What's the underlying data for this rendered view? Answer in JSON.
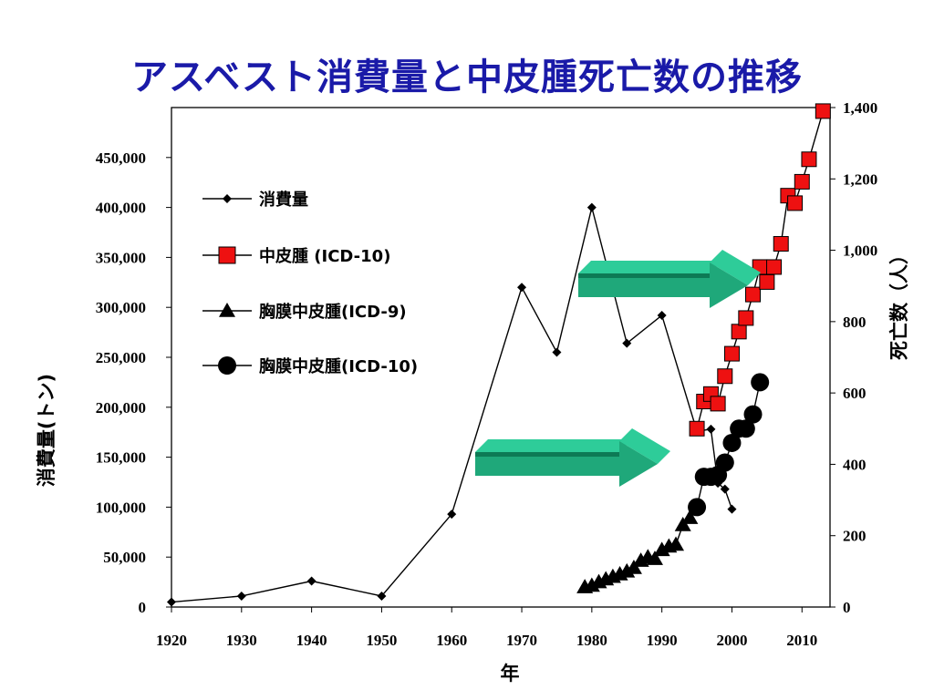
{
  "title": "アスベスト消費量と中皮腫死亡数の推移",
  "chart_data": {
    "type": "line",
    "xlabel": "年",
    "ylabel_left": "消費量(トン)",
    "ylabel_right": "死亡数（人）",
    "xlim": [
      1920,
      2014
    ],
    "ylim_left": [
      0,
      500000
    ],
    "ylim_right": [
      0,
      1400
    ],
    "x_ticks": [
      "1920",
      "1930",
      "1940",
      "1950",
      "1960",
      "1970",
      "1980",
      "1990",
      "2000",
      "2010"
    ],
    "y_left_ticks": [
      "0",
      "50,000",
      "100,000",
      "150,000",
      "200,000",
      "250,000",
      "300,000",
      "350,000",
      "400,000",
      "450,000"
    ],
    "y_right_ticks": [
      "0",
      "200",
      "400",
      "600",
      "800",
      "1,000",
      "1,200",
      "1,400"
    ],
    "legend": "upper-left",
    "colors": {
      "title": "#1a1aa8",
      "consumption": "#000000",
      "mesothelioma_marker": "#ee1111",
      "pleural": "#000000",
      "arrow_face": "#1fa87a",
      "arrow_top": "#2ecc99",
      "arrow_dark": "#0d7a55"
    },
    "series": [
      {
        "name": "消費量",
        "axis": "left",
        "marker": "diamond",
        "x": [
          1920,
          1930,
          1940,
          1950,
          1960,
          1970,
          1975,
          1980,
          1985,
          1990,
          1995,
          1997,
          1998,
          1999,
          2000
        ],
        "y": [
          5000,
          11000,
          26000,
          11000,
          93000,
          320000,
          255000,
          400000,
          264000,
          292000,
          176000,
          178000,
          124000,
          118000,
          98000
        ]
      },
      {
        "name": "中皮腫 (ICD-10)",
        "axis": "right",
        "marker": "square",
        "x": [
          1995,
          1996,
          1997,
          1998,
          1999,
          2000,
          2001,
          2002,
          2003,
          2004,
          2005,
          2006,
          2007,
          2008,
          2009,
          2010,
          2011,
          2013
        ],
        "y": [
          500,
          576,
          597,
          570,
          647,
          710,
          772,
          810,
          876,
          953,
          911,
          953,
          1018,
          1153,
          1132,
          1192,
          1255,
          1390
        ]
      },
      {
        "name": "胸膜中皮腫(ICD-9)",
        "axis": "right",
        "marker": "triangle",
        "x": [
          1979,
          1980,
          1981,
          1982,
          1983,
          1984,
          1985,
          1986,
          1987,
          1988,
          1989,
          1990,
          1991,
          1992,
          1993,
          1994
        ],
        "y": [
          56,
          60,
          70,
          78,
          85,
          92,
          100,
          110,
          130,
          140,
          135,
          160,
          170,
          175,
          230,
          250
        ]
      },
      {
        "name": "胸膜中皮腫(ICD-10)",
        "axis": "right",
        "marker": "circle",
        "x": [
          1995,
          1996,
          1997,
          1998,
          1999,
          2000,
          2001,
          2002,
          2003,
          2004
        ],
        "y": [
          280,
          365,
          365,
          370,
          405,
          460,
          500,
          500,
          540,
          630
        ]
      }
    ]
  }
}
